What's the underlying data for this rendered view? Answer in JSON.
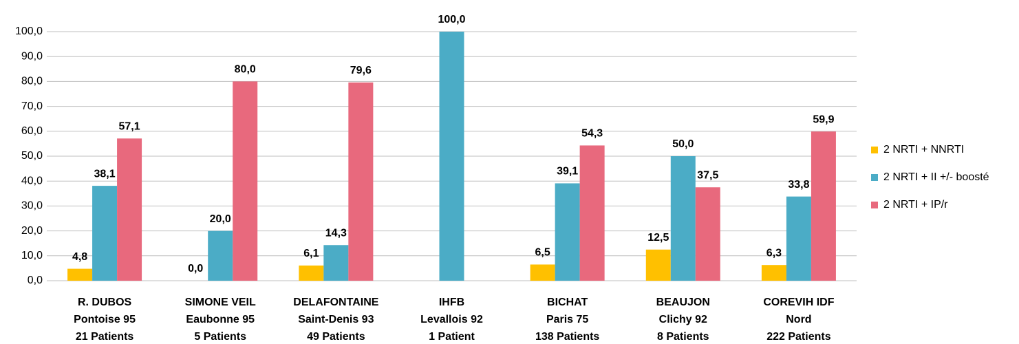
{
  "chart_data": {
    "type": "bar",
    "categories": [
      [
        "R. DUBOS",
        "Pontoise 95",
        "21 Patients"
      ],
      [
        "SIMONE VEIL",
        "Eaubonne 95",
        "5 Patients"
      ],
      [
        "DELAFONTAINE",
        "Saint-Denis 93",
        "49 Patients"
      ],
      [
        "IHFB",
        "Levallois 92",
        "1 Patient"
      ],
      [
        "BICHAT",
        "Paris 75",
        "138 Patients"
      ],
      [
        "BEAUJON",
        "Clichy 92",
        "8 Patients"
      ],
      [
        "COREVIH IDF",
        "Nord",
        "222 Patients"
      ]
    ],
    "series": [
      {
        "name": "2 NRTI + NNRTI",
        "color": "#ffc000",
        "values": [
          4.8,
          0.0,
          6.1,
          null,
          6.5,
          12.5,
          6.3
        ],
        "value_labels": [
          "4,8",
          "0,0",
          "6,1",
          null,
          "6,5",
          "12,5",
          "6,3"
        ]
      },
      {
        "name": "2 NRTI + II +/- boosté",
        "color": "#4bacc6",
        "values": [
          38.1,
          20.0,
          14.3,
          100.0,
          39.1,
          50.0,
          33.8
        ],
        "value_labels": [
          "38,1",
          "20,0",
          "14,3",
          "100,0",
          "39,1",
          "50,0",
          "33,8"
        ]
      },
      {
        "name": "2 NRTI + IP/r",
        "color": "#e8697d",
        "values": [
          57.1,
          80.0,
          79.6,
          null,
          54.3,
          37.5,
          59.9
        ],
        "value_labels": [
          "57,1",
          "80,0",
          "79,6",
          null,
          "54,3",
          "37,5",
          "59,9"
        ]
      }
    ],
    "ylim": [
      0,
      100
    ],
    "yticks": [
      {
        "value": 0,
        "label": "0,0"
      },
      {
        "value": 10,
        "label": "10,0"
      },
      {
        "value": 20,
        "label": "20,0"
      },
      {
        "value": 30,
        "label": "30,0"
      },
      {
        "value": 40,
        "label": "40,0"
      },
      {
        "value": 50,
        "label": "50,0"
      },
      {
        "value": 60,
        "label": "60,0"
      },
      {
        "value": 70,
        "label": "70,0"
      },
      {
        "value": 80,
        "label": "80,0"
      },
      {
        "value": 90,
        "label": "90,0"
      },
      {
        "value": 100,
        "label": "100,0"
      }
    ],
    "grid": true,
    "legend": "right"
  }
}
